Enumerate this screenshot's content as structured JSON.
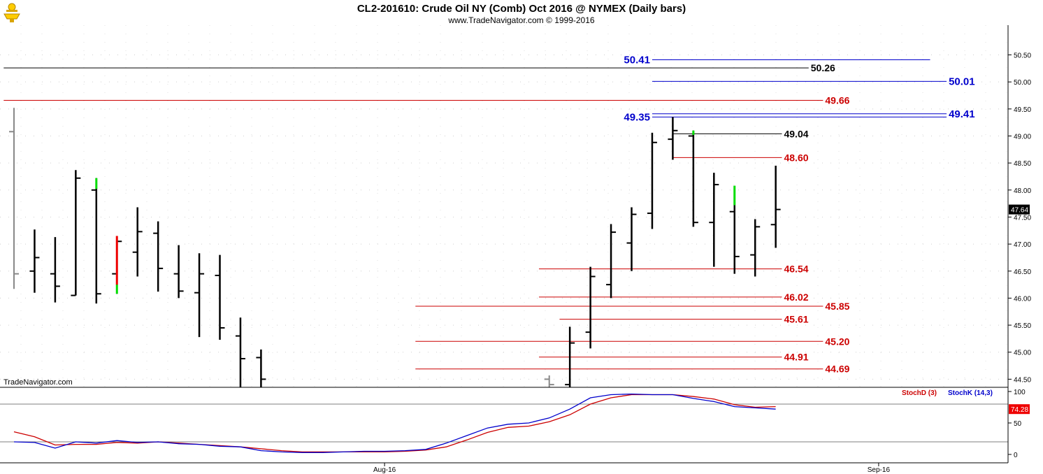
{
  "header": {
    "title": "CL2-201610:  Crude Oil NY (Comb) Oct 2016 @ NYMEX  (Daily bars)",
    "subtitle": "www.TradeNavigator.com © 1999-2016",
    "watermark": "TradeNavigator.com",
    "logo_icon": "trophy-icon"
  },
  "chart_data": {
    "type": "ohlc-bar",
    "price_axis": {
      "ticks": [
        "50.50",
        "50.00",
        "49.50",
        "49.00",
        "48.50",
        "48.00",
        "47.50",
        "47.00",
        "46.50",
        "46.00",
        "45.50",
        "45.00",
        "44.50"
      ],
      "tick_values": [
        50.5,
        50.0,
        49.5,
        49.0,
        48.5,
        48.0,
        47.5,
        47.0,
        46.5,
        46.0,
        45.5,
        45.0,
        44.5
      ],
      "range": [
        44.35,
        51.05
      ],
      "last_price": "47.64",
      "last_price_value": 47.64
    },
    "time_axis": {
      "labels": [
        "Aug-16",
        "Sep-16"
      ],
      "label_slots": [
        18,
        42
      ]
    },
    "bars": [
      {
        "slot": 0,
        "open": 49.08,
        "high": 49.52,
        "low": 46.17,
        "close": 46.45,
        "color": "#888888"
      },
      {
        "slot": 1,
        "open": 46.5,
        "high": 47.27,
        "low": 46.1,
        "close": 46.75,
        "color": "#000000"
      },
      {
        "slot": 2,
        "open": 46.45,
        "high": 47.13,
        "low": 45.92,
        "close": 46.22,
        "color": "#000000"
      },
      {
        "slot": 3,
        "open": 46.05,
        "high": 48.37,
        "low": 46.05,
        "close": 48.22,
        "color": "#000000"
      },
      {
        "slot": 4,
        "open": 48.0,
        "high": 48.22,
        "low": 45.9,
        "close": 46.08,
        "color": "#000000"
      },
      {
        "slot": 5,
        "open": 46.45,
        "high": 47.15,
        "low": 46.08,
        "close": 47.05,
        "color": "#000000"
      },
      {
        "slot": 6,
        "open": 46.85,
        "high": 47.68,
        "low": 46.4,
        "close": 47.23,
        "color": "#000000"
      },
      {
        "slot": 7,
        "open": 47.2,
        "high": 47.42,
        "low": 46.12,
        "close": 46.55,
        "color": "#000000"
      },
      {
        "slot": 8,
        "open": 46.45,
        "high": 46.98,
        "low": 46.0,
        "close": 46.13,
        "color": "#000000"
      },
      {
        "slot": 9,
        "open": 46.1,
        "high": 46.83,
        "low": 45.28,
        "close": 46.45,
        "color": "#000000"
      },
      {
        "slot": 10,
        "open": 46.42,
        "high": 46.8,
        "low": 45.23,
        "close": 45.45,
        "color": "#000000"
      },
      {
        "slot": 11,
        "open": 45.3,
        "high": 45.64,
        "low": 44.35,
        "close": 44.88,
        "color": "#000000"
      },
      {
        "slot": 12,
        "open": 44.9,
        "high": 45.05,
        "low": 44.35,
        "close": 44.5,
        "color": "#000000"
      },
      {
        "slot": 26,
        "open": 44.5,
        "high": 44.57,
        "low": 44.35,
        "close": 44.4,
        "color": "#888888"
      },
      {
        "slot": 27,
        "open": 44.4,
        "high": 45.47,
        "low": 44.35,
        "close": 45.17,
        "color": "#000000"
      },
      {
        "slot": 28,
        "open": 45.37,
        "high": 46.58,
        "low": 45.07,
        "close": 46.4,
        "color": "#000000"
      },
      {
        "slot": 29,
        "open": 46.25,
        "high": 47.37,
        "low": 46.0,
        "close": 47.22,
        "color": "#000000"
      },
      {
        "slot": 30,
        "open": 47.02,
        "high": 47.68,
        "low": 46.5,
        "close": 47.55,
        "color": "#000000"
      },
      {
        "slot": 31,
        "open": 47.57,
        "high": 49.06,
        "low": 47.28,
        "close": 48.88,
        "color": "#000000"
      },
      {
        "slot": 32,
        "open": 48.94,
        "high": 49.35,
        "low": 48.56,
        "close": 49.1,
        "color": "#000000"
      },
      {
        "slot": 33,
        "open": 49.0,
        "high": 49.1,
        "low": 47.32,
        "close": 47.4,
        "color": "#000000"
      },
      {
        "slot": 34,
        "open": 47.4,
        "high": 48.32,
        "low": 46.58,
        "close": 48.1,
        "color": "#000000"
      },
      {
        "slot": 35,
        "open": 47.6,
        "high": 47.72,
        "low": 46.45,
        "close": 46.77,
        "color": "#000000"
      },
      {
        "slot": 36,
        "open": 46.8,
        "high": 47.46,
        "low": 46.4,
        "close": 47.32,
        "color": "#000000"
      },
      {
        "slot": 37,
        "open": 47.36,
        "high": 48.45,
        "low": 46.93,
        "close": 47.64,
        "color": "#000000"
      }
    ],
    "highlight_segments": [
      {
        "slot": 4,
        "from": 48.02,
        "to": 48.22,
        "color": "#00dd00"
      },
      {
        "slot": 5,
        "from": 46.08,
        "to": 46.25,
        "color": "#00dd00"
      },
      {
        "slot": 5,
        "from": 46.25,
        "to": 47.15,
        "color": "#ee0000"
      },
      {
        "slot": 33,
        "from": 49.02,
        "to": 49.1,
        "color": "#00dd00"
      },
      {
        "slot": 35,
        "from": 47.72,
        "to": 48.08,
        "color": "#00dd00"
      }
    ],
    "levels": [
      {
        "value": 50.41,
        "label": "50.41",
        "color": "#0000cc",
        "from_slot": 31,
        "to_slot": 44.5,
        "label_side": "left",
        "label_size": "big"
      },
      {
        "value": 50.26,
        "label": "50.26",
        "color": "#000000",
        "from_slot": -0.5,
        "to_slot": 38.6,
        "label_side": "right"
      },
      {
        "value": 50.01,
        "label": "50.01",
        "color": "#0000cc",
        "from_slot": 31,
        "to_slot": 45.3,
        "label_side": "right",
        "label_size": "big"
      },
      {
        "value": 49.66,
        "label": "49.66",
        "color": "#cc0000",
        "from_slot": -0.5,
        "to_slot": 39.3,
        "label_side": "right"
      },
      {
        "value": 49.41,
        "label": "49.41",
        "color": "#0000cc",
        "from_slot": 31,
        "to_slot": 45.3,
        "label_side": "right",
        "label_size": "big"
      },
      {
        "value": 49.35,
        "label": "49.35",
        "color": "#0000cc",
        "from_slot": 31,
        "to_slot": 45.3,
        "label_side": "left",
        "label_size": "big"
      },
      {
        "value": 49.04,
        "label": "49.04",
        "color": "#000000",
        "from_slot": 32,
        "to_slot": 37.3,
        "label_side": "right"
      },
      {
        "value": 48.6,
        "label": "48.60",
        "color": "#cc0000",
        "from_slot": 32,
        "to_slot": 37.3,
        "label_side": "right"
      },
      {
        "value": 46.54,
        "label": "46.54",
        "color": "#cc0000",
        "from_slot": 25.5,
        "to_slot": 37.3,
        "label_side": "right"
      },
      {
        "value": 46.02,
        "label": "46.02",
        "color": "#cc0000",
        "from_slot": 25.5,
        "to_slot": 37.3,
        "label_side": "right"
      },
      {
        "value": 45.85,
        "label": "45.85",
        "color": "#cc0000",
        "from_slot": 19.5,
        "to_slot": 39.3,
        "label_side": "right"
      },
      {
        "value": 45.61,
        "label": "45.61",
        "color": "#cc0000",
        "from_slot": 26.5,
        "to_slot": 37.3,
        "label_side": "right"
      },
      {
        "value": 45.2,
        "label": "45.20",
        "color": "#cc0000",
        "from_slot": 19.5,
        "to_slot": 39.3,
        "label_side": "right"
      },
      {
        "value": 44.91,
        "label": "44.91",
        "color": "#cc0000",
        "from_slot": 25.5,
        "to_slot": 37.3,
        "label_side": "right"
      },
      {
        "value": 44.69,
        "label": "44.69",
        "color": "#cc0000",
        "from_slot": 19.5,
        "to_slot": 39.3,
        "label_side": "right"
      }
    ],
    "stochastic": {
      "labels": {
        "d": "StochD (3)",
        "k": "StochK (14,3)"
      },
      "ticks": [
        "100",
        "50",
        "0"
      ],
      "tick_values": [
        100,
        50,
        0
      ],
      "ref_lines": [
        80,
        20
      ],
      "last_value": "74.28",
      "d_color": "#cc0000",
      "k_color": "#0000cc",
      "slots": [
        0,
        1,
        2,
        3,
        4,
        5,
        6,
        7,
        8,
        9,
        10,
        11,
        12,
        13,
        14,
        15,
        16,
        17,
        18,
        19,
        20,
        21,
        22,
        23,
        24,
        25,
        26,
        27,
        28,
        29,
        30,
        31,
        32,
        33,
        34,
        35,
        36,
        37
      ],
      "k": [
        20,
        19,
        10,
        20,
        18,
        22,
        19,
        20,
        17,
        16,
        13,
        12,
        6,
        4,
        3,
        3,
        4,
        5,
        5,
        6,
        8,
        18,
        30,
        42,
        48,
        50,
        58,
        72,
        90,
        95,
        96,
        95,
        95,
        89,
        84,
        76,
        74,
        72
      ],
      "d": [
        36,
        28,
        15,
        16,
        16,
        19,
        18,
        20,
        18,
        16,
        14,
        12,
        9,
        6,
        4,
        4,
        4,
        4,
        4,
        5,
        7,
        12,
        23,
        35,
        43,
        45,
        52,
        63,
        80,
        90,
        95,
        95,
        95,
        92,
        88,
        79,
        75,
        76
      ]
    }
  }
}
